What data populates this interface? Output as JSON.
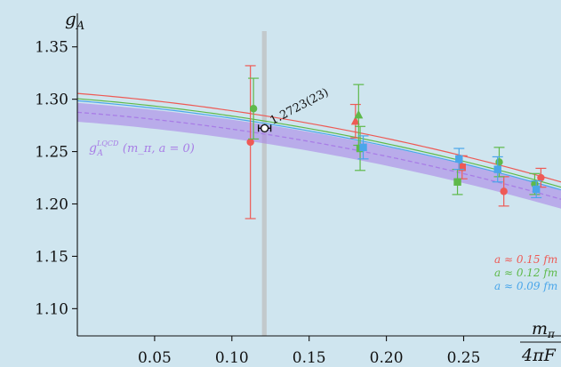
{
  "chart_data": {
    "type": "scatter",
    "title": "",
    "xlabel_num": "m_π",
    "xlabel_den": "4πF_π",
    "ylabel": "g_A",
    "xlim": [
      0.0,
      0.313
    ],
    "ylim": [
      1.074,
      1.382
    ],
    "x_ticks": [
      "0.05",
      "0.10",
      "0.15",
      "0.20",
      "0.25"
    ],
    "x_tick_values": [
      0.05,
      0.1,
      0.15,
      0.2,
      0.25
    ],
    "y_ticks": [
      "1.10",
      "1.15",
      "1.20",
      "1.25",
      "1.30",
      "1.35"
    ],
    "y_tick_values": [
      1.1,
      1.15,
      1.2,
      1.25,
      1.3,
      1.35
    ],
    "physical_point": {
      "x": 0.1212,
      "y": 1.2723,
      "xerr": 0.004,
      "label": "1.2723(23)",
      "band_x": [
        0.1195,
        0.1225
      ],
      "band_color": "#c2c9cc"
    },
    "band": {
      "label": "g_A^LQCD(m_π, a = 0)",
      "label_main": "g",
      "label_sub": "A",
      "label_sup": "LQCD",
      "label_args": "(m_π, a = 0)",
      "color": "#a87de6",
      "y_at_0": 1.2875,
      "y_at_end": 1.2045,
      "half_width": 0.009,
      "central_dashed": true
    },
    "fit_lines": [
      {
        "name": "a ≈ 0.15 fm",
        "color": "#ee5a55",
        "y_at_0": 1.3055,
        "y_at_end": 1.221
      },
      {
        "name": "a ≈ 0.12 fm",
        "color": "#5eb94a",
        "y_at_0": 1.3005,
        "y_at_end": 1.216
      },
      {
        "name": "a ≈ 0.09 fm",
        "color": "#4aa6ea",
        "y_at_0": 1.2985,
        "y_at_end": 1.2135
      }
    ],
    "series": [
      {
        "name": "a ≈ 0.15 fm",
        "color": "#ee5a55",
        "points": [
          {
            "x": 0.112,
            "y": 1.259,
            "yerr": 0.073,
            "marker": "circle"
          },
          {
            "x": 0.18,
            "y": 1.279,
            "yerr": 0.016,
            "marker": "triangle"
          },
          {
            "x": 0.249,
            "y": 1.235,
            "yerr": 0.011,
            "marker": "square"
          },
          {
            "x": 0.276,
            "y": 1.212,
            "yerr": 0.014,
            "marker": "circle"
          },
          {
            "x": 0.3,
            "y": 1.225,
            "yerr": 0.009,
            "marker": "circle"
          }
        ]
      },
      {
        "name": "a ≈ 0.12 fm",
        "color": "#5eb94a",
        "points": [
          {
            "x": 0.114,
            "y": 1.291,
            "yerr": 0.029,
            "marker": "circle"
          },
          {
            "x": 0.182,
            "y": 1.285,
            "yerr": 0.029,
            "marker": "triangle"
          },
          {
            "x": 0.183,
            "y": 1.253,
            "yerr": 0.021,
            "marker": "square"
          },
          {
            "x": 0.246,
            "y": 1.221,
            "yerr": 0.012,
            "marker": "square"
          },
          {
            "x": 0.273,
            "y": 1.24,
            "yerr": 0.014,
            "marker": "circle"
          },
          {
            "x": 0.296,
            "y": 1.219,
            "yerr": 0.01,
            "marker": "circle"
          }
        ]
      },
      {
        "name": "a ≈ 0.09 fm",
        "color": "#4aa6ea",
        "points": [
          {
            "x": 0.185,
            "y": 1.254,
            "yerr": 0.011,
            "marker": "square"
          },
          {
            "x": 0.247,
            "y": 1.243,
            "yerr": 0.01,
            "marker": "square"
          },
          {
            "x": 0.272,
            "y": 1.233,
            "yerr": 0.012,
            "marker": "square"
          },
          {
            "x": 0.297,
            "y": 1.214,
            "yerr": 0.008,
            "marker": "square"
          }
        ]
      }
    ],
    "legend": {
      "placement": "bottom-right",
      "entries": [
        {
          "label": "a ≈ 0.15 fm",
          "color": "#ee5a55"
        },
        {
          "label": "a ≈ 0.12 fm",
          "color": "#5eb94a"
        },
        {
          "label": "a ≈ 0.09 fm",
          "color": "#4aa6ea"
        }
      ]
    },
    "background": "#cfe5ef",
    "grid": false
  }
}
